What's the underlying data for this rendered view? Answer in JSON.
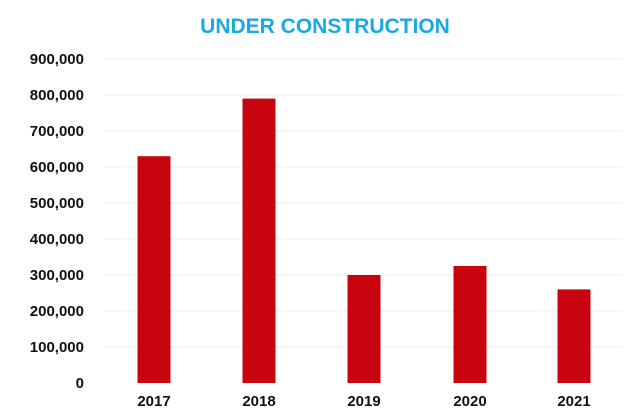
{
  "chart_data": {
    "type": "bar",
    "title": "UNDER CONSTRUCTION",
    "categories": [
      "2017",
      "2018",
      "2019",
      "2020",
      "2021"
    ],
    "values": [
      630000,
      790000,
      300000,
      325000,
      260000
    ],
    "y_ticks": [
      "0",
      "100,000",
      "200,000",
      "300,000",
      "400,000",
      "500,000",
      "600,000",
      "700,000",
      "800,000",
      "900,000"
    ],
    "ylim": [
      0,
      900000
    ],
    "xlabel": "",
    "ylabel": "",
    "grid": true,
    "legend": "none"
  },
  "colors": {
    "title": "#1ba9e6",
    "bar": "#c8040e",
    "grid": "#ececec",
    "text": "#111111"
  }
}
